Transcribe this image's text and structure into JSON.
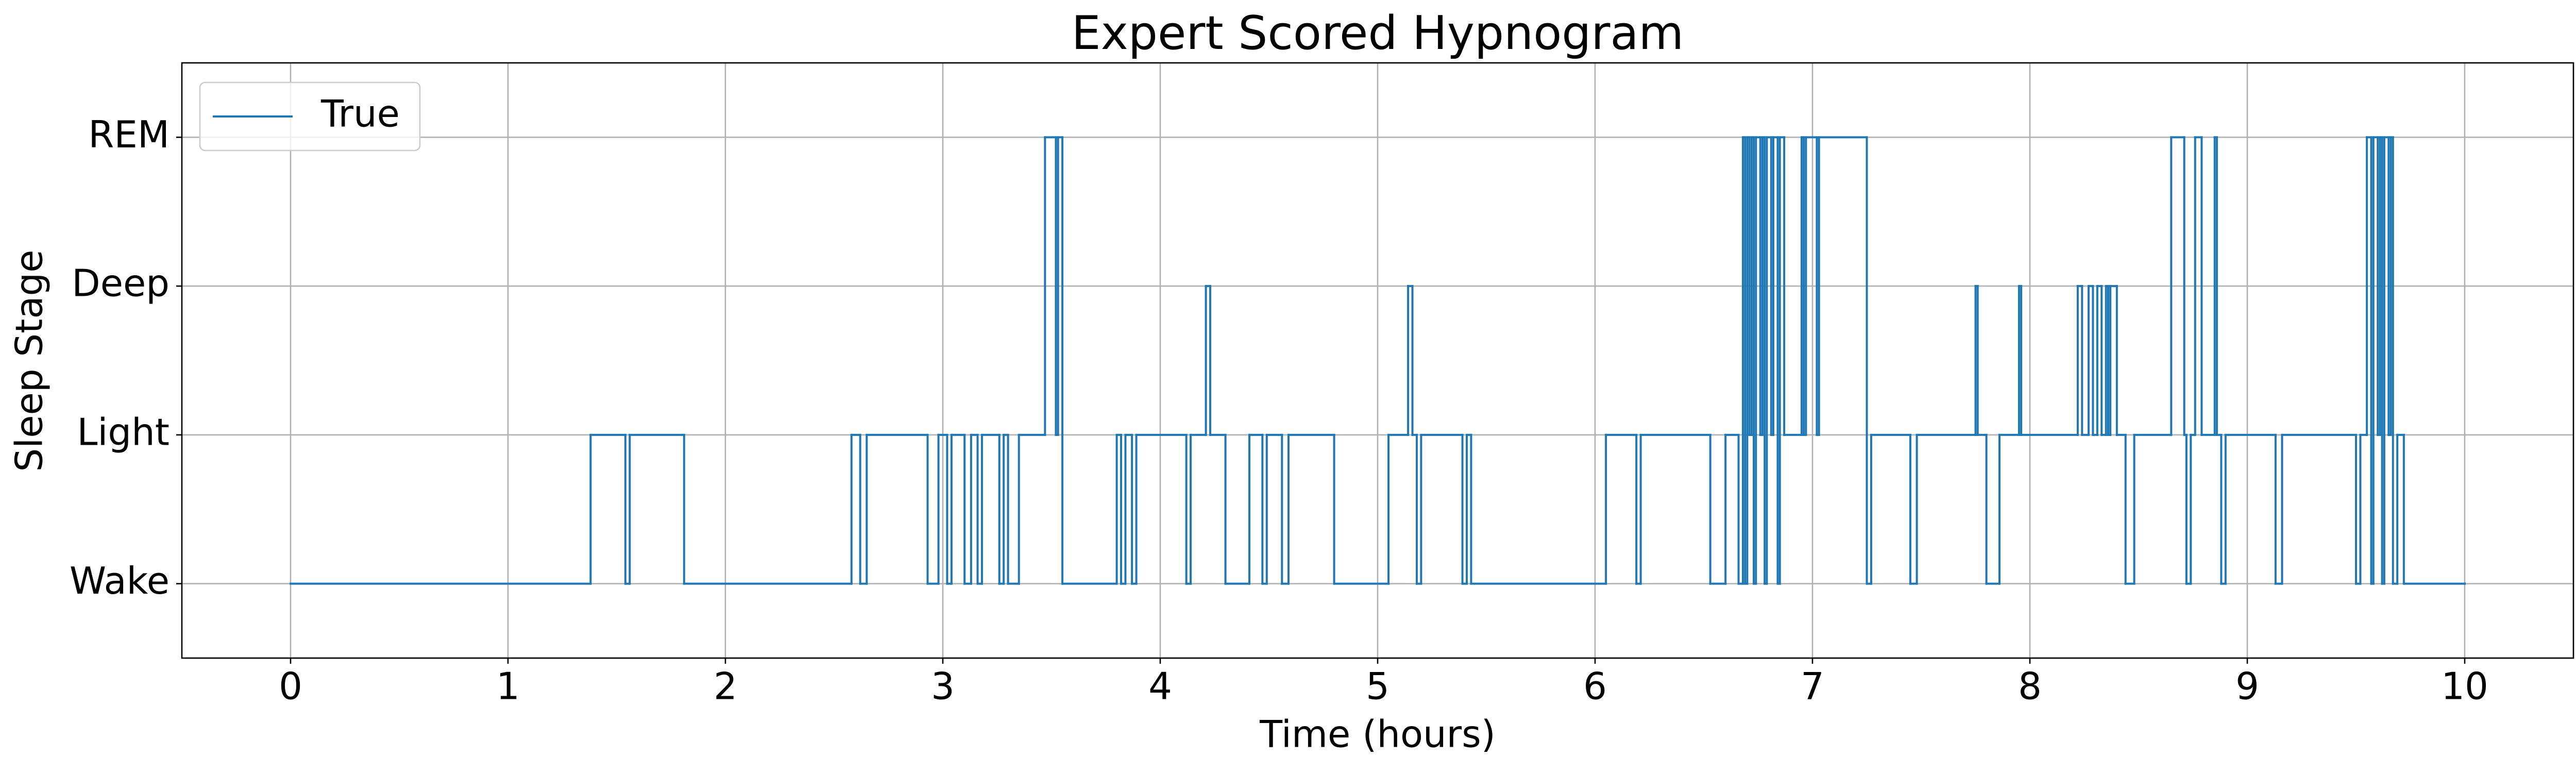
{
  "chart_data": {
    "type": "line",
    "drawstyle": "steps-post",
    "title": "Expert Scored Hypnogram",
    "xlabel": "Time (hours)",
    "ylabel": "Sleep Stage",
    "xlim": [
      -0.5,
      10.5
    ],
    "ylim": [
      -0.5,
      3.5
    ],
    "xticks": [
      0,
      1,
      2,
      3,
      4,
      5,
      6,
      7,
      8,
      9,
      10
    ],
    "yticks": [
      {
        "value": 0,
        "label": "Wake"
      },
      {
        "value": 1,
        "label": "Light"
      },
      {
        "value": 2,
        "label": "Deep"
      },
      {
        "value": 3,
        "label": "REM"
      }
    ],
    "grid": true,
    "legend": "upper left",
    "series": [
      {
        "name": "True",
        "color": "#1f77b4",
        "x": [
          0,
          1.38,
          1.54,
          1.56,
          1.81,
          2.58,
          2.62,
          2.65,
          2.93,
          2.98,
          3.02,
          3.04,
          3.1,
          3.13,
          3.16,
          3.18,
          3.26,
          3.28,
          3.3,
          3.35,
          3.47,
          3.52,
          3.53,
          3.55,
          3.8,
          3.82,
          3.84,
          3.87,
          3.89,
          4.12,
          4.14,
          4.21,
          4.23,
          4.3,
          4.41,
          4.47,
          4.49,
          4.56,
          4.59,
          4.8,
          5.05,
          5.14,
          5.16,
          5.18,
          5.2,
          5.39,
          5.41,
          5.43,
          6.05,
          6.19,
          6.21,
          6.53,
          6.6,
          6.66,
          6.68,
          6.69,
          6.7,
          6.71,
          6.72,
          6.73,
          6.74,
          6.76,
          6.77,
          6.78,
          6.79,
          6.81,
          6.82,
          6.84,
          6.85,
          6.87,
          6.95,
          6.96,
          6.97,
          7.02,
          7.03,
          7.25,
          7.27,
          7.45,
          7.48,
          7.75,
          7.76,
          7.8,
          7.86,
          7.95,
          7.96,
          8.22,
          8.24,
          8.27,
          8.29,
          8.31,
          8.33,
          8.35,
          8.36,
          8.37,
          8.4,
          8.44,
          8.48,
          8.65,
          8.71,
          8.72,
          8.74,
          8.76,
          8.79,
          8.85,
          8.86,
          8.88,
          8.9,
          9.13,
          9.16,
          9.5,
          9.52,
          9.55,
          9.57,
          9.58,
          9.6,
          9.61,
          9.62,
          9.63,
          9.65,
          9.66,
          9.67,
          9.69,
          9.72,
          10
        ],
        "values": [
          0,
          1,
          0,
          1,
          0,
          1,
          0,
          1,
          0,
          1,
          0,
          1,
          0,
          1,
          0,
          1,
          0,
          1,
          0,
          1,
          3,
          1,
          3,
          0,
          1,
          0,
          1,
          0,
          1,
          0,
          1,
          2,
          1,
          0,
          1,
          0,
          1,
          0,
          1,
          0,
          1,
          2,
          1,
          0,
          1,
          0,
          1,
          0,
          1,
          0,
          1,
          0,
          1,
          0,
          3,
          0,
          3,
          1,
          3,
          0,
          3,
          1,
          3,
          0,
          3,
          1,
          3,
          0,
          3,
          1,
          3,
          1,
          3,
          1,
          3,
          0,
          1,
          0,
          1,
          2,
          1,
          0,
          1,
          2,
          1,
          2,
          1,
          2,
          1,
          2,
          1,
          2,
          1,
          2,
          1,
          0,
          1,
          3,
          1,
          0,
          1,
          3,
          1,
          3,
          1,
          0,
          1,
          0,
          1,
          0,
          1,
          3,
          0,
          3,
          1,
          3,
          0,
          3,
          1,
          3,
          0,
          1,
          0,
          0
        ]
      }
    ]
  }
}
